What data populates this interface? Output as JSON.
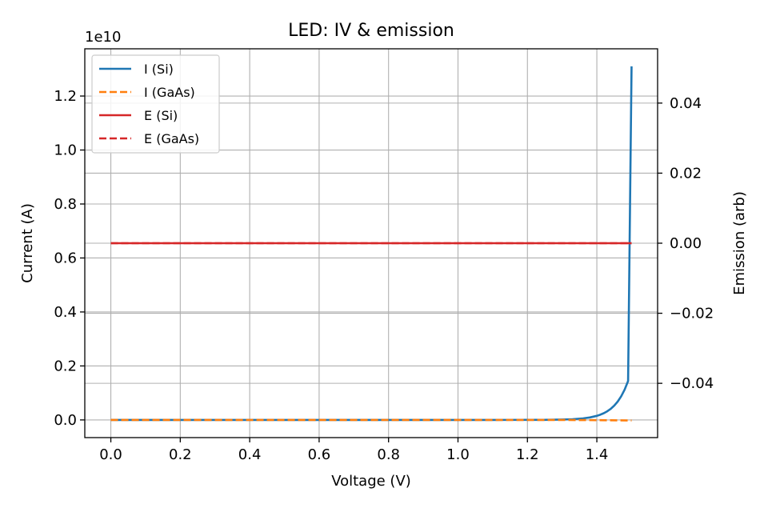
{
  "chart_data": {
    "type": "line",
    "title": "LED: IV & emission",
    "xlabel": "Voltage (V)",
    "ylabel": "Current (A)",
    "ylabel_right": "Emission (arb)",
    "offset_label": "1e10",
    "xlim": [
      -0.075,
      1.575
    ],
    "ylim": [
      -0.0655,
      1.375
    ],
    "y_scale_factor": 10000000000,
    "ylim_right": [
      -0.0555,
      0.0555
    ],
    "xticks": [
      0.0,
      0.2,
      0.4,
      0.6,
      0.8,
      1.0,
      1.2,
      1.4
    ],
    "xtick_labels": [
      "0.0",
      "0.2",
      "0.4",
      "0.6",
      "0.8",
      "1.0",
      "1.2",
      "1.4"
    ],
    "yticks": [
      0.0,
      0.2,
      0.4,
      0.6,
      0.8,
      1.0,
      1.2
    ],
    "ytick_labels": [
      "0.0",
      "0.2",
      "0.4",
      "0.6",
      "0.8",
      "1.0",
      "1.2"
    ],
    "yticks_right": [
      -0.04,
      -0.02,
      0.0,
      0.02,
      0.04
    ],
    "ytick_labels_right": [
      "−0.04",
      "−0.02",
      "0.00",
      "0.02",
      "0.04"
    ],
    "grid": true,
    "legend_position": "top-left",
    "series": [
      {
        "name": "I (Si)",
        "axis": "left",
        "color": "#1f77b4",
        "style": "solid",
        "x": [
          0.0,
          0.3,
          0.6,
          0.9,
          1.1,
          1.2,
          1.25,
          1.3,
          1.33,
          1.36,
          1.38,
          1.4,
          1.41,
          1.42,
          1.43,
          1.44,
          1.45,
          1.46,
          1.47,
          1.48,
          1.49,
          1.5
        ],
        "values": [
          0.0,
          0.0,
          0.0,
          0.0,
          1e-05,
          0.00012,
          0.0004,
          0.0013,
          0.0027,
          0.0056,
          0.0092,
          0.0151,
          0.0194,
          0.0249,
          0.032,
          0.0411,
          0.0529,
          0.0679,
          0.0873,
          0.1122,
          0.1442,
          1.31
        ]
      },
      {
        "name": "I (GaAs)",
        "axis": "left",
        "color": "#ff7f0e",
        "style": "dashed",
        "x": [
          0.0,
          0.5,
          1.0,
          1.3,
          1.4,
          1.5
        ],
        "values": [
          0.0,
          0.0,
          0.0,
          -0.0001,
          -0.0008,
          -0.002
        ]
      },
      {
        "name": "E (Si)",
        "axis": "right",
        "color": "#d62728",
        "style": "solid",
        "x": [
          0.0,
          1.5
        ],
        "values": [
          0.0,
          0.0
        ]
      },
      {
        "name": "E (GaAs)",
        "axis": "right",
        "color": "#d62728",
        "style": "dashed",
        "x": [
          0.0,
          1.5
        ],
        "values": [
          0.0,
          0.0
        ]
      }
    ]
  }
}
